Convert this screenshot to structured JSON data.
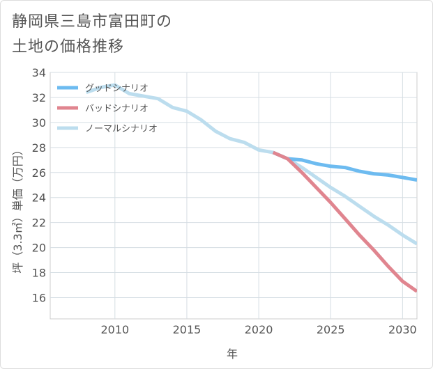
{
  "title_line1": "静岡県三島市富田町の",
  "title_line2": "土地の価格推移",
  "chart_data": {
    "type": "line",
    "title": "静岡県三島市富田町の土地の価格推移",
    "xlabel": "年",
    "ylabel": "坪（3.3㎡）単価（万円）",
    "xlim": [
      2005.5,
      2031
    ],
    "ylim": [
      14.3,
      34
    ],
    "xticks": [
      2010,
      2015,
      2020,
      2025,
      2030
    ],
    "yticks": [
      16,
      18,
      20,
      22,
      24,
      26,
      28,
      30,
      32,
      34
    ],
    "grid": true,
    "legend_position": "top-left",
    "series": [
      {
        "name": "グッドシナリオ",
        "color": "#6dbbf0",
        "x": [
          2021,
          2022,
          2023,
          2024,
          2025,
          2026,
          2027,
          2028,
          2029,
          2030,
          2031
        ],
        "y": [
          27.6,
          27.1,
          27.0,
          26.7,
          26.5,
          26.4,
          26.1,
          25.9,
          25.8,
          25.6,
          25.4
        ]
      },
      {
        "name": "バッドシナリオ",
        "color": "#e0858f",
        "x": [
          2021,
          2022,
          2023,
          2024,
          2025,
          2026,
          2027,
          2028,
          2029,
          2030,
          2031
        ],
        "y": [
          27.6,
          27.1,
          26.0,
          24.8,
          23.6,
          22.3,
          21.0,
          19.8,
          18.5,
          17.3,
          16.5
        ]
      },
      {
        "name": "ノーマルシナリオ",
        "color": "#bcddee",
        "x": [
          2008,
          2009,
          2010,
          2011,
          2012,
          2013,
          2014,
          2015,
          2016,
          2017,
          2018,
          2019,
          2020,
          2021,
          2022,
          2023,
          2024,
          2025,
          2026,
          2027,
          2028,
          2029,
          2030,
          2031
        ],
        "y": [
          32.4,
          32.8,
          33.0,
          32.3,
          32.1,
          31.9,
          31.2,
          30.9,
          30.2,
          29.3,
          28.7,
          28.4,
          27.8,
          27.6,
          27.1,
          26.4,
          25.6,
          24.8,
          24.1,
          23.3,
          22.5,
          21.8,
          21.0,
          20.3
        ]
      }
    ]
  }
}
